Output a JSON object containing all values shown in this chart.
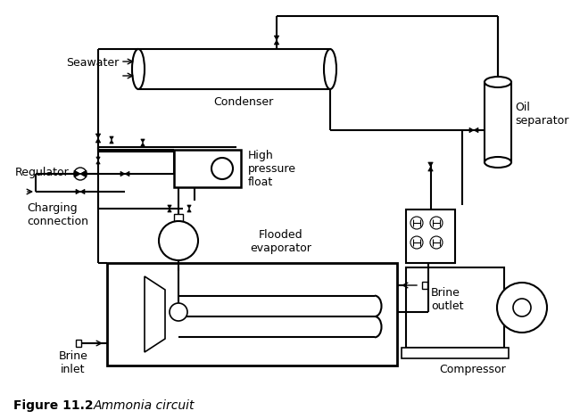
{
  "title": "Figure 11.2",
  "title_italic": "Ammonia circuit",
  "bg_color": "#ffffff",
  "line_color": "#000000",
  "line_width": 1.5,
  "labels": {
    "seawater": "Seawater",
    "condenser": "Condenser",
    "oil_separator": "Oil\nseparator",
    "regulator": "Regulator",
    "high_pressure_float": "High\npressure\nfloat",
    "charging_connection": "Charging\nconnection",
    "flooded_evaporator": "Flooded\nevaporator",
    "brine_inlet": "Brine\ninlet",
    "brine_outlet": "Brine\noutlet",
    "compressor": "Compressor"
  }
}
